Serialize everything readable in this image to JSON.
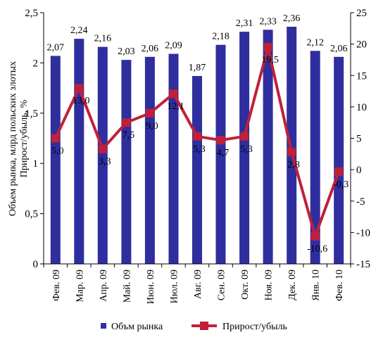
{
  "chart_data": {
    "type": "bar",
    "title": "",
    "categories": [
      "Фев. 09",
      "Мар. 09",
      "Апр. 09",
      "Май. 09",
      "Июн. 09",
      "Июл. 09",
      "Авг. 09",
      "Сен. 09",
      "Окт. 09",
      "Ноя. 09",
      "Дек. 09",
      "Янв. 10",
      "Фев. 10"
    ],
    "ylabel": "Объем рынка, млрд польских злотых",
    "ylabel2": "Прирост/убыль, %",
    "ylim": [
      0,
      2.5
    ],
    "ylim2": [
      -15,
      25
    ],
    "yticks": [
      "0",
      "0,5",
      "1",
      "1,5",
      "2",
      "2,5"
    ],
    "yticks2": [
      "-15",
      "-10",
      "-5",
      "0",
      "5",
      "10",
      "15",
      "20",
      "25"
    ],
    "series": [
      {
        "name": "Объм рынка",
        "type": "bar",
        "axis": "left",
        "color": "#2e2e9e",
        "values": [
          2.07,
          2.24,
          2.16,
          2.03,
          2.06,
          2.09,
          1.87,
          2.18,
          2.31,
          2.33,
          2.36,
          2.12,
          2.06
        ],
        "labels": [
          "2,07",
          "2,24",
          "2,16",
          "2,03",
          "2,06",
          "2,09",
          "1,87",
          "2,18",
          "2,31",
          "2,33",
          "2,36",
          "2,12",
          "2,06"
        ]
      },
      {
        "name": "Прирост/убыль",
        "type": "line",
        "axis": "right",
        "color": "#c0203a",
        "values": [
          5.0,
          13.0,
          3.3,
          7.5,
          9.0,
          12.1,
          5.3,
          4.7,
          5.3,
          19.5,
          2.8,
          -10.6,
          -0.3
        ],
        "labels": [
          "5,0",
          "13,0",
          "3,3",
          "7,5",
          "9,0",
          "12,1",
          "5,3",
          "4,7",
          "5,3",
          "19,5",
          "2,8",
          "-10,6",
          "-0,3"
        ]
      }
    ],
    "grid": false,
    "legend": "bottom"
  }
}
